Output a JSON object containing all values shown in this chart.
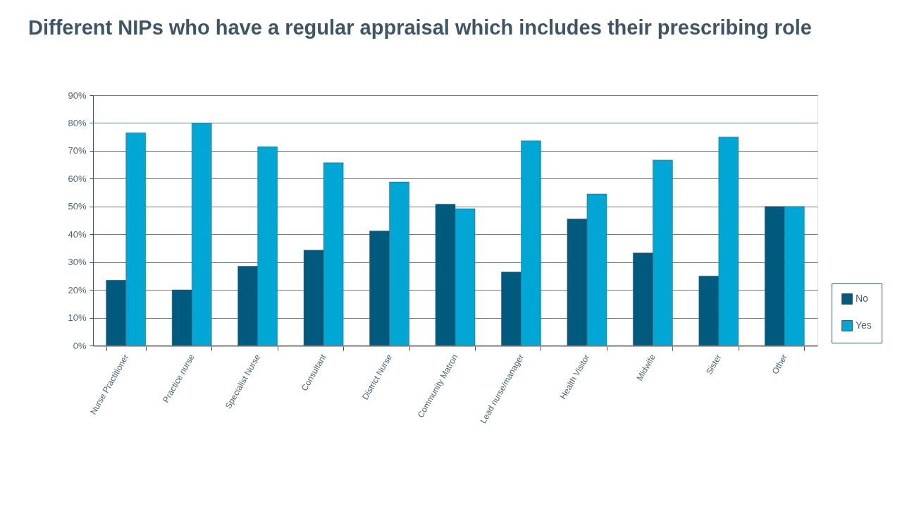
{
  "chart_data": {
    "type": "bar",
    "title": "Different NIPs who have a regular appraisal which includes their prescribing role",
    "categories": [
      "Nurse Practitioner",
      "Practice nurse",
      "Specialist Nurse",
      "Consultant",
      "District Nurse",
      "Community Matron",
      "Lead nurse/manager",
      "Health Visitor",
      "Midwife",
      "Sister",
      "Other"
    ],
    "series": [
      {
        "name": "No",
        "color": "#005a7e",
        "values": [
          23.5,
          20,
          28.5,
          34.3,
          41.2,
          50.8,
          26.4,
          45.5,
          33.3,
          25,
          50
        ]
      },
      {
        "name": "Yes",
        "color": "#00a7d4",
        "values": [
          76.5,
          80,
          71.5,
          65.7,
          58.8,
          49.2,
          73.6,
          54.5,
          66.7,
          75,
          50
        ]
      }
    ],
    "ylim": [
      0,
      90
    ],
    "yticks": [
      {
        "value": 0,
        "label": "0%"
      },
      {
        "value": 10,
        "label": "10%"
      },
      {
        "value": 20,
        "label": "20%"
      },
      {
        "value": 30,
        "label": "30%"
      },
      {
        "value": 40,
        "label": "40%"
      },
      {
        "value": 50,
        "label": "50%"
      },
      {
        "value": 60,
        "label": "60%"
      },
      {
        "value": 70,
        "label": "70%"
      },
      {
        "value": 80,
        "label": "80%"
      },
      {
        "value": 90,
        "label": "90%"
      }
    ],
    "grid": "y",
    "legend": "right"
  }
}
